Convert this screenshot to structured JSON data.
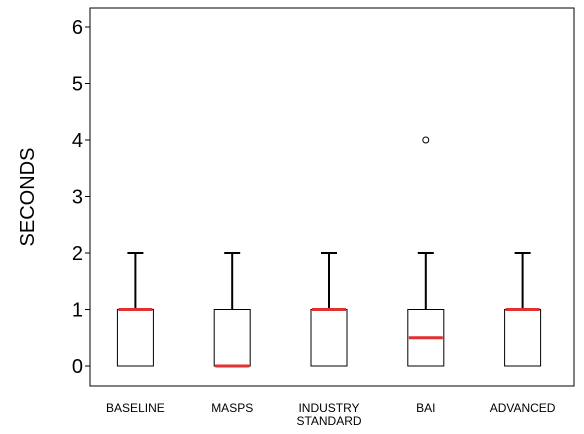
{
  "chart_data": {
    "type": "box",
    "title": "",
    "xlabel": "",
    "ylabel": "SECONDS",
    "ylim": [
      0,
      6
    ],
    "yticks": [
      0,
      1,
      2,
      3,
      4,
      5,
      6
    ],
    "grid": false,
    "legend": "none",
    "categories": [
      "BASELINE",
      "MASPS",
      "INDUSTRY\nSTANDARD",
      "BAI",
      "ADVANCED"
    ],
    "boxes": [
      {
        "category": "BASELINE",
        "min": 0,
        "q1": 0,
        "median": 1,
        "q3": 1,
        "max": 2,
        "outliers": []
      },
      {
        "category": "MASPS",
        "min": 0,
        "q1": 0,
        "median": 0,
        "q3": 1,
        "max": 2,
        "outliers": []
      },
      {
        "category": "INDUSTRY STANDARD",
        "min": 0,
        "q1": 0,
        "median": 1,
        "q3": 1,
        "max": 2,
        "outliers": []
      },
      {
        "category": "BAI",
        "min": 0,
        "q1": 0,
        "median": 0.5,
        "q3": 1,
        "max": 2,
        "outliers": [
          4
        ]
      },
      {
        "category": "ADVANCED",
        "min": 0,
        "q1": 0,
        "median": 1,
        "q3": 1,
        "max": 2,
        "outliers": []
      }
    ],
    "colors": {
      "median": "#e03030",
      "box_stroke": "#000000",
      "axis": "#000000",
      "background": "#ffffff"
    }
  }
}
